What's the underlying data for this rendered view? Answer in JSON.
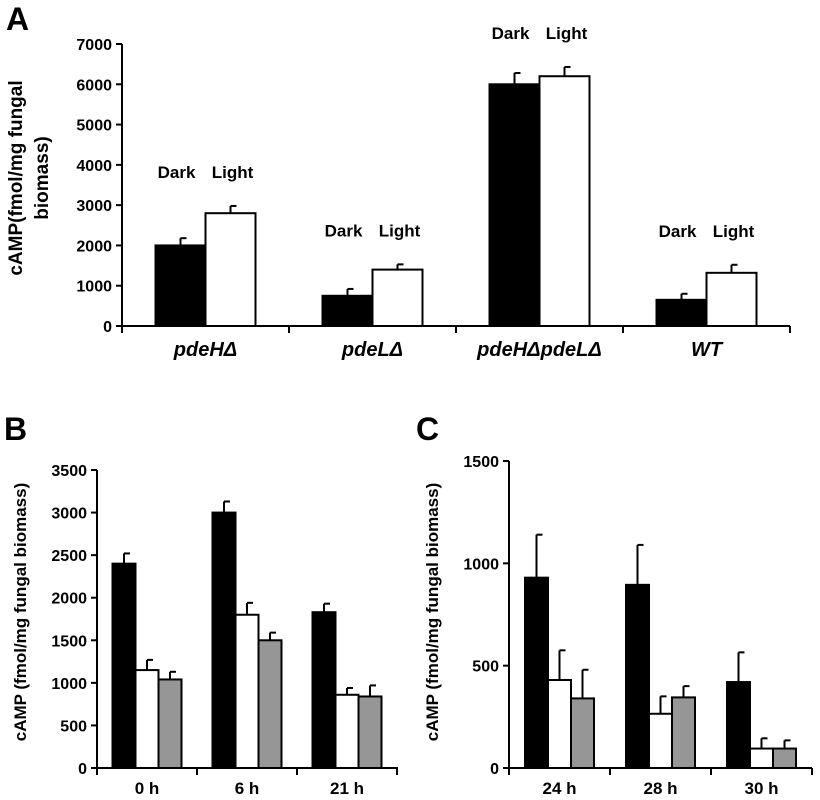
{
  "chart_data": [
    {
      "panel": "A",
      "type": "bar",
      "ylabel_lines": [
        "cAMP(fmol/mg fungal",
        "biomass)"
      ],
      "ylim": [
        0,
        7000
      ],
      "yticks": [
        "0",
        "1000",
        "2000",
        "3000",
        "4000",
        "5000",
        "6000",
        "7000"
      ],
      "categories": [
        "pdeHΔ",
        "pdeLΔ",
        "pdeHΔpdeLΔ",
        "WT"
      ],
      "series": [
        {
          "name": "Dark",
          "color": "#000000",
          "values": [
            2000,
            750,
            6000,
            650
          ],
          "errors": [
            180,
            170,
            280,
            150
          ]
        },
        {
          "name": "Light",
          "color": "#ffffff",
          "values": [
            2800,
            1400,
            6200,
            1320
          ],
          "errors": [
            180,
            130,
            230,
            200
          ]
        }
      ],
      "bar_annotations": [
        {
          "dark": "Dark",
          "light": "Light"
        },
        {
          "dark": "Dark",
          "light": "Light"
        },
        {
          "dark": "Dark",
          "light": "Light"
        },
        {
          "dark": "Dark",
          "light": "Light"
        }
      ],
      "grid": false
    },
    {
      "panel": "B",
      "type": "bar",
      "ylabel": "cAMP (fmol/mg fungal biomass)",
      "ylim": [
        0,
        3500
      ],
      "yticks": [
        "0",
        "500",
        "1000",
        "1500",
        "2000",
        "2500",
        "3000",
        "3500"
      ],
      "categories": [
        "0 h",
        "6 h",
        "21 h"
      ],
      "series": [
        {
          "color": "#000000",
          "values": [
            2400,
            3000,
            1830
          ],
          "errors": [
            120,
            130,
            100
          ]
        },
        {
          "color": "#ffffff",
          "values": [
            1150,
            1800,
            860
          ],
          "errors": [
            120,
            140,
            80
          ]
        },
        {
          "color": "#969696",
          "values": [
            1040,
            1500,
            840
          ],
          "errors": [
            90,
            90,
            130
          ]
        }
      ],
      "grid": false
    },
    {
      "panel": "C",
      "type": "bar",
      "ylabel": "cAMP (fmol/mg fungal biomass)",
      "ylim": [
        0,
        1500
      ],
      "yticks": [
        "0",
        "500",
        "1000",
        "1500"
      ],
      "categories": [
        "24 h",
        "28 h",
        "30 h"
      ],
      "series": [
        {
          "color": "#000000",
          "values": [
            930,
            895,
            420
          ],
          "errors": [
            210,
            195,
            145
          ]
        },
        {
          "color": "#ffffff",
          "values": [
            430,
            265,
            95
          ],
          "errors": [
            145,
            85,
            50
          ]
        },
        {
          "color": "#969696",
          "values": [
            340,
            345,
            95
          ],
          "errors": [
            140,
            55,
            40
          ]
        }
      ],
      "grid": false
    }
  ]
}
